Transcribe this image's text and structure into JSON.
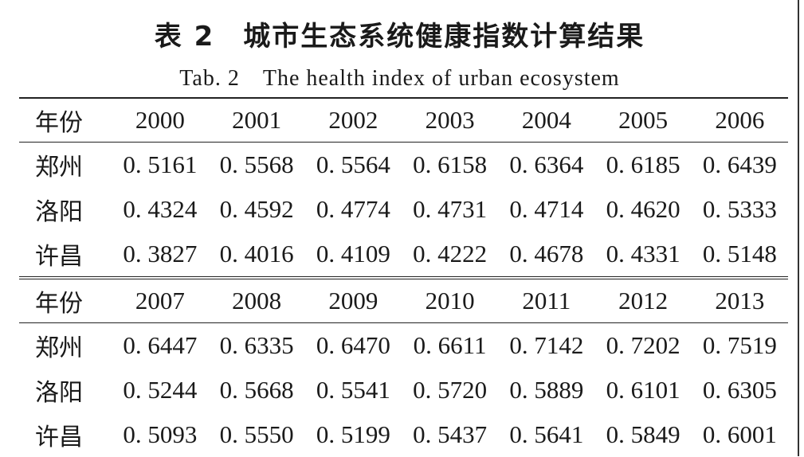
{
  "title_cn": "表 2　城市生态系统健康指数计算结果",
  "title_en": "Tab. 2　The health index of urban ecosystem",
  "blocks": [
    {
      "header_label": "年份",
      "years": [
        "2000",
        "2001",
        "2002",
        "2003",
        "2004",
        "2005",
        "2006"
      ],
      "rows": [
        {
          "city": "郑州",
          "values": [
            "0. 5161",
            "0. 5568",
            "0. 5564",
            "0. 6158",
            "0. 6364",
            "0. 6185",
            "0. 6439"
          ]
        },
        {
          "city": "洛阳",
          "values": [
            "0. 4324",
            "0. 4592",
            "0. 4774",
            "0. 4731",
            "0. 4714",
            "0. 4620",
            "0. 5333"
          ]
        },
        {
          "city": "许昌",
          "values": [
            "0. 3827",
            "0. 4016",
            "0. 4109",
            "0. 4222",
            "0. 4678",
            "0. 4331",
            "0. 5148"
          ]
        }
      ]
    },
    {
      "header_label": "年份",
      "years": [
        "2007",
        "2008",
        "2009",
        "2010",
        "2011",
        "2012",
        "2013"
      ],
      "rows": [
        {
          "city": "郑州",
          "values": [
            "0. 6447",
            "0. 6335",
            "0. 6470",
            "0. 6611",
            "0. 7142",
            "0. 7202",
            "0. 7519"
          ]
        },
        {
          "city": "洛阳",
          "values": [
            "0. 5244",
            "0. 5668",
            "0. 5541",
            "0. 5720",
            "0. 5889",
            "0. 6101",
            "0. 6305"
          ]
        },
        {
          "city": "许昌",
          "values": [
            "0. 5093",
            "0. 5550",
            "0. 5199",
            "0. 5437",
            "0. 5641",
            "0. 5849",
            "0. 6001"
          ]
        }
      ]
    }
  ]
}
